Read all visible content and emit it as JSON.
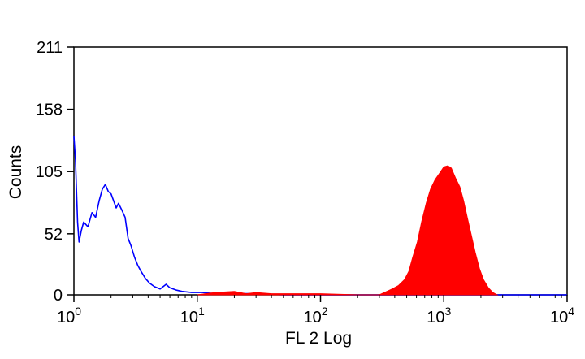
{
  "chart_data": {
    "type": "histogram",
    "xlabel": "FL 2 Log",
    "ylabel": "Counts",
    "x_scale": "log",
    "xlim": [
      1,
      10000
    ],
    "ylim": [
      0,
      211
    ],
    "x_ticks": [
      {
        "base": "10",
        "exp": "0",
        "value": 1
      },
      {
        "base": "10",
        "exp": "1",
        "value": 10
      },
      {
        "base": "10",
        "exp": "2",
        "value": 100
      },
      {
        "base": "10",
        "exp": "3",
        "value": 1000
      },
      {
        "base": "10",
        "exp": "4",
        "value": 10000
      }
    ],
    "y_ticks": [
      "0",
      "52",
      "105",
      "158",
      "211"
    ],
    "grid": false,
    "series": [
      {
        "style": "outline",
        "color": "#0000ff",
        "points": [
          [
            1.0,
            135
          ],
          [
            1.03,
            115
          ],
          [
            1.07,
            62
          ],
          [
            1.1,
            45
          ],
          [
            1.15,
            55
          ],
          [
            1.2,
            62
          ],
          [
            1.3,
            58
          ],
          [
            1.4,
            70
          ],
          [
            1.5,
            66
          ],
          [
            1.6,
            80
          ],
          [
            1.7,
            90
          ],
          [
            1.8,
            94
          ],
          [
            1.9,
            88
          ],
          [
            2.0,
            86
          ],
          [
            2.1,
            80
          ],
          [
            2.2,
            74
          ],
          [
            2.3,
            78
          ],
          [
            2.45,
            72
          ],
          [
            2.6,
            66
          ],
          [
            2.75,
            48
          ],
          [
            2.9,
            42
          ],
          [
            3.1,
            32
          ],
          [
            3.3,
            25
          ],
          [
            3.5,
            20
          ],
          [
            3.8,
            14
          ],
          [
            4.1,
            10
          ],
          [
            4.5,
            7
          ],
          [
            5.0,
            5
          ],
          [
            5.6,
            9
          ],
          [
            6.0,
            6
          ],
          [
            6.8,
            4
          ],
          [
            7.5,
            3
          ],
          [
            9.0,
            2
          ],
          [
            11,
            2
          ],
          [
            14,
            1
          ],
          [
            20,
            1
          ],
          [
            30,
            1
          ],
          [
            50,
            0
          ],
          [
            1000,
            0
          ],
          [
            10000,
            0
          ]
        ]
      },
      {
        "style": "filled",
        "color": "#ff0000",
        "points": [
          [
            10,
            0
          ],
          [
            14,
            2
          ],
          [
            20,
            3
          ],
          [
            25,
            1
          ],
          [
            30,
            2
          ],
          [
            40,
            1
          ],
          [
            60,
            1
          ],
          [
            80,
            1
          ],
          [
            100,
            1
          ],
          [
            200,
            0
          ],
          [
            300,
            0
          ],
          [
            330,
            2
          ],
          [
            380,
            5
          ],
          [
            430,
            8
          ],
          [
            480,
            13
          ],
          [
            520,
            20
          ],
          [
            560,
            32
          ],
          [
            610,
            45
          ],
          [
            660,
            62
          ],
          [
            720,
            78
          ],
          [
            780,
            90
          ],
          [
            850,
            98
          ],
          [
            930,
            104
          ],
          [
            1000,
            109
          ],
          [
            1080,
            110
          ],
          [
            1150,
            108
          ],
          [
            1250,
            99
          ],
          [
            1350,
            92
          ],
          [
            1450,
            80
          ],
          [
            1550,
            66
          ],
          [
            1680,
            50
          ],
          [
            1800,
            36
          ],
          [
            1950,
            22
          ],
          [
            2100,
            13
          ],
          [
            2300,
            6
          ],
          [
            2500,
            2
          ],
          [
            2700,
            0
          ]
        ]
      }
    ]
  }
}
